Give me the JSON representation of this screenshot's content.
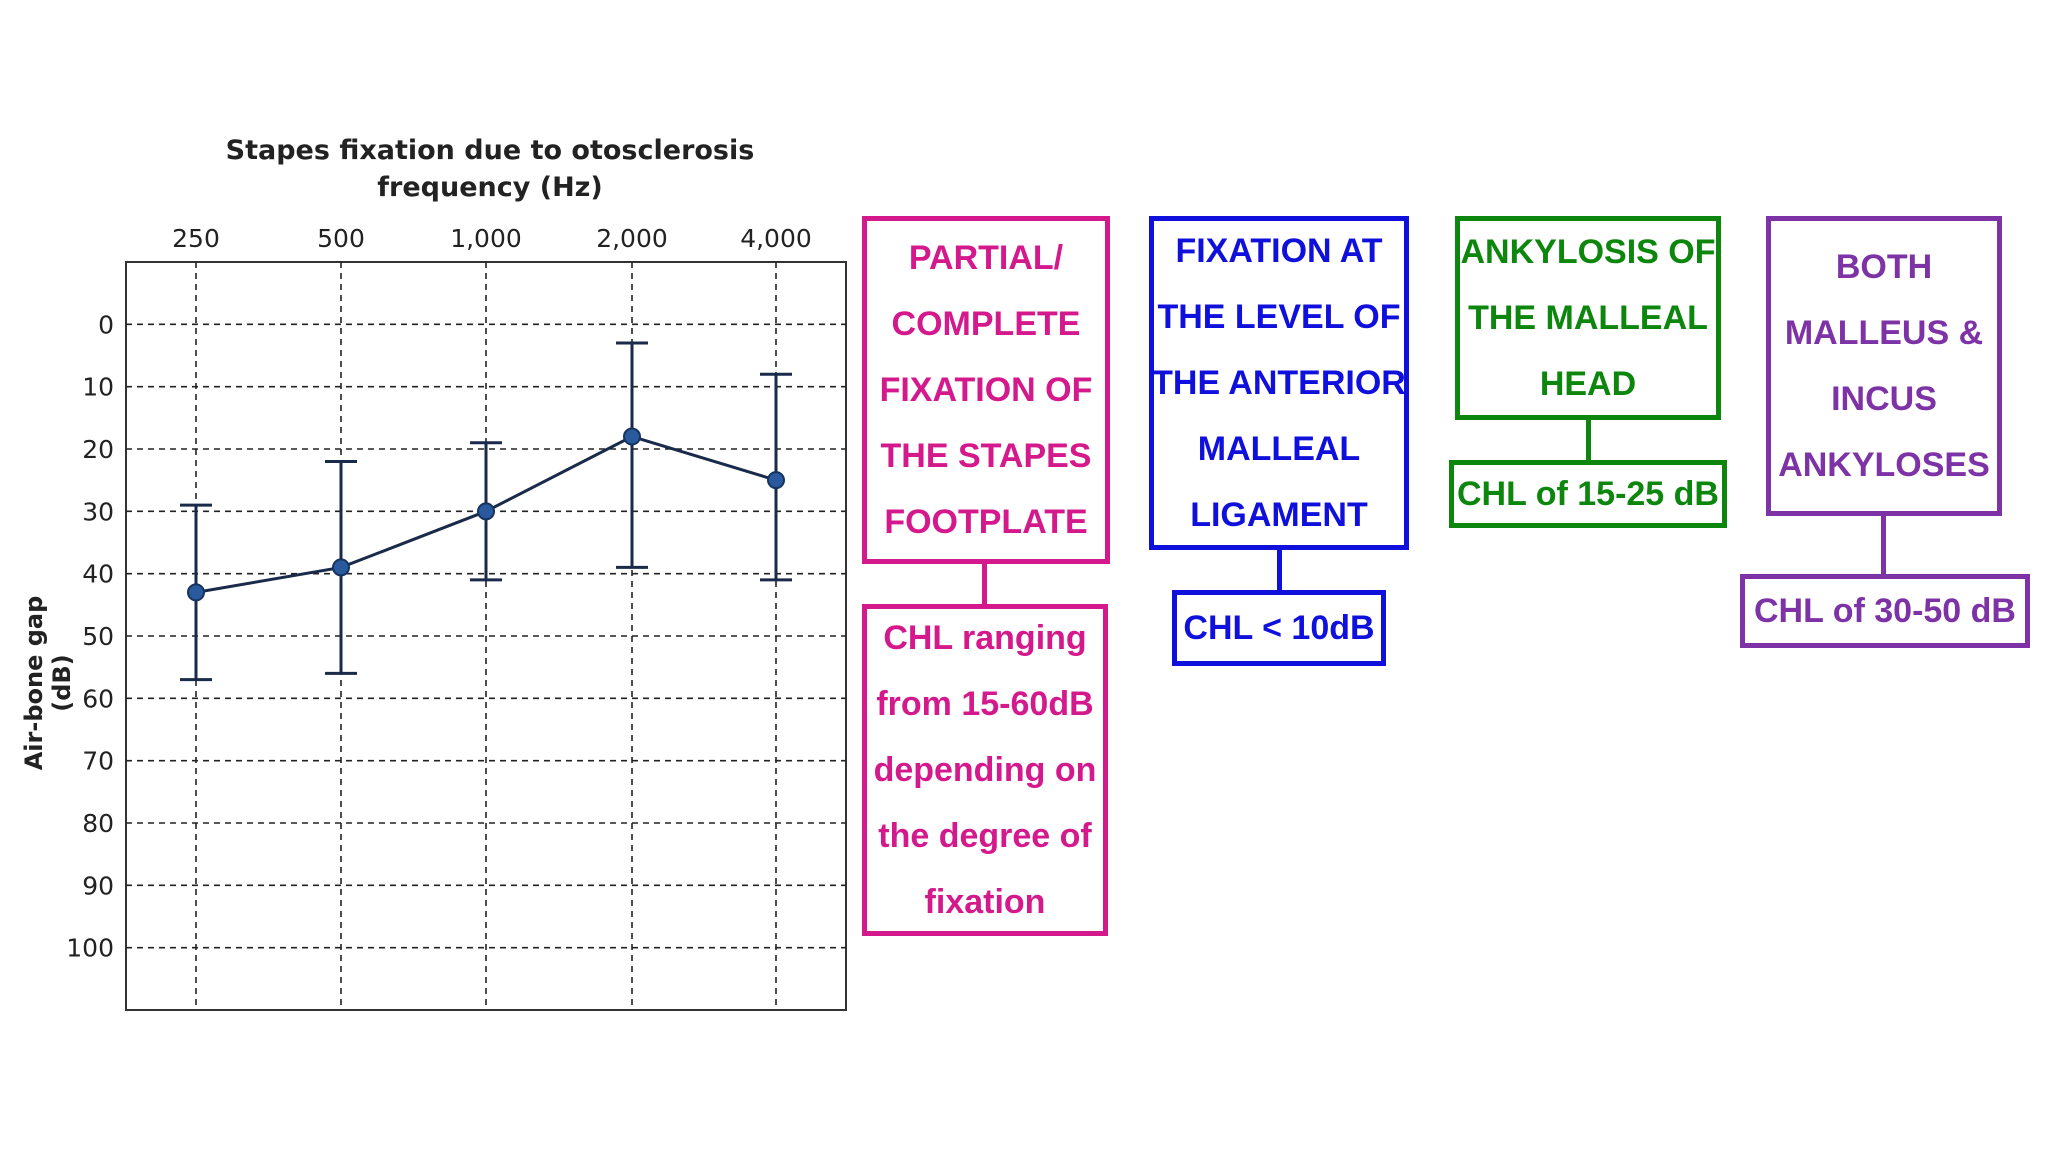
{
  "chart_data": {
    "type": "line",
    "title": "Stapes fixation due to otosclerosis",
    "xlabel": "frequency (Hz)",
    "ylabel": "Air-bone gap (dB)",
    "categories": [
      "250",
      "500",
      "1,000",
      "2,000",
      "4,000"
    ],
    "y_ticks": [
      "0",
      "10",
      "20",
      "30",
      "40",
      "50",
      "60",
      "70",
      "80",
      "90",
      "100"
    ],
    "ylim": [
      -10,
      110
    ],
    "y_inverted": true,
    "x_axis_position": "top",
    "grid": true,
    "series": [
      {
        "values": [
          43,
          39,
          30,
          18,
          25
        ],
        "error_low": [
          29,
          22,
          19,
          3,
          8
        ],
        "error_high": [
          57,
          56,
          41,
          39,
          41
        ]
      }
    ]
  },
  "annotations": [
    {
      "id": "stapes",
      "color": "#d4198c",
      "heading": [
        "PARTIAL/",
        "COMPLETE",
        "FIXATION OF",
        "THE STAPES",
        "FOOTPLATE"
      ],
      "detail": [
        "CHL ranging",
        "from 15-60dB",
        "depending on",
        "the degree of",
        "fixation"
      ]
    },
    {
      "id": "ligament",
      "color": "#1010dc",
      "heading": [
        "FIXATION AT",
        "THE LEVEL OF",
        "THE ANTERIOR",
        "MALLEAL",
        "LIGAMENT"
      ],
      "detail": [
        "CHL < 10dB"
      ]
    },
    {
      "id": "malleal-head",
      "color": "#0d860d",
      "heading": [
        "ANKYLOSIS OF",
        "THE MALLEAL",
        "HEAD"
      ],
      "detail": [
        "CHL of 15-25 dB"
      ]
    },
    {
      "id": "malleus-incus",
      "color": "#7d32a6",
      "heading": [
        "BOTH",
        "MALLEUS &",
        "INCUS",
        "ANKYLOSES"
      ],
      "detail": [
        "CHL of 30-50 dB"
      ]
    }
  ]
}
